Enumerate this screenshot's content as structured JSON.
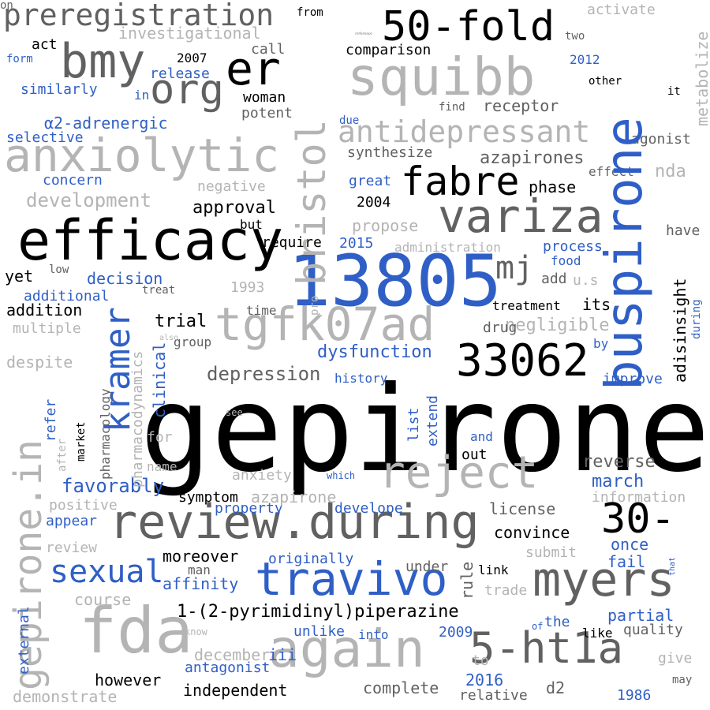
{
  "colors": {
    "background": "#ffffff",
    "black": "#000000",
    "dark_gray": "#616161",
    "light_gray": "#b4b4b4",
    "blue": "#2f5fc6"
  },
  "words": [
    {
      "text": "gepirone",
      "color": "#000000"
    },
    {
      "text": "13805",
      "color": "#2f5fc6"
    },
    {
      "text": "efficacy",
      "color": "#000000"
    },
    {
      "text": "fda",
      "color": "#b4b4b4"
    },
    {
      "text": "again",
      "color": "#b4b4b4"
    },
    {
      "text": "myers",
      "color": "#616161"
    },
    {
      "text": "review.during",
      "color": "#616161"
    },
    {
      "text": "travivo",
      "color": "#2f5fc6"
    },
    {
      "text": "anxiolytic",
      "color": "#b4b4b4"
    },
    {
      "text": "squibb",
      "color": "#b4b4b4"
    },
    {
      "text": "variza",
      "color": "#616161"
    },
    {
      "text": "tgfk07ad",
      "color": "#b4b4b4"
    },
    {
      "text": "reject",
      "color": "#b4b4b4"
    },
    {
      "text": "33062",
      "color": "#000000"
    },
    {
      "text": "5-ht1a",
      "color": "#616161"
    },
    {
      "text": "50-fold",
      "color": "#000000"
    },
    {
      "text": "fabre",
      "color": "#000000"
    },
    {
      "text": "bmy",
      "color": "#616161"
    },
    {
      "text": "er",
      "color": "#000000"
    },
    {
      "text": "org",
      "color": "#616161"
    },
    {
      "text": "30-",
      "color": "#000000"
    },
    {
      "text": "mj",
      "color": "#616161"
    },
    {
      "text": "preregistration",
      "color": "#616161"
    },
    {
      "text": "antidepressant",
      "color": "#b4b4b4"
    },
    {
      "text": "sexual",
      "color": "#2f5fc6"
    },
    {
      "text": "favorably",
      "color": "#2f5fc6"
    },
    {
      "text": "depression",
      "color": "#616161"
    },
    {
      "text": "1-(2-pyrimidinyl)piperazine",
      "color": "#000000"
    },
    {
      "text": "dysfunction",
      "color": "#2f5fc6"
    },
    {
      "text": "approval",
      "color": "#000000"
    },
    {
      "text": "development",
      "color": "#b4b4b4"
    },
    {
      "text": "investigational",
      "color": "#b4b4b4"
    },
    {
      "text": "comparison",
      "color": "#000000"
    },
    {
      "text": "receptor",
      "color": "#616161"
    },
    {
      "text": "synthesize",
      "color": "#616161"
    },
    {
      "text": "azapirones",
      "color": "#616161"
    },
    {
      "text": "phase",
      "color": "#000000"
    },
    {
      "text": "agonist",
      "color": "#616161"
    },
    {
      "text": "nda",
      "color": "#b4b4b4"
    },
    {
      "text": "effect",
      "color": "#616161"
    },
    {
      "text": "have",
      "color": "#616161"
    },
    {
      "text": "propose",
      "color": "#b4b4b4"
    },
    {
      "text": "process",
      "color": "#2f5fc6"
    },
    {
      "text": "food",
      "color": "#2f5fc6"
    },
    {
      "text": "administration",
      "color": "#b4b4b4"
    },
    {
      "text": "add",
      "color": "#616161"
    },
    {
      "text": "u.s",
      "color": "#b4b4b4"
    },
    {
      "text": "treatment",
      "color": "#000000"
    },
    {
      "text": "its",
      "color": "#000000"
    },
    {
      "text": "negligible",
      "color": "#b4b4b4"
    },
    {
      "text": "drug",
      "color": "#616161"
    },
    {
      "text": "history",
      "color": "#2f5fc6"
    },
    {
      "text": "improve",
      "color": "#2f5fc6"
    },
    {
      "text": "by",
      "color": "#2f5fc6"
    },
    {
      "text": "reverse",
      "color": "#616161"
    },
    {
      "text": "march",
      "color": "#2f5fc6"
    },
    {
      "text": "information",
      "color": "#b4b4b4"
    },
    {
      "text": "license",
      "color": "#616161"
    },
    {
      "text": "convince",
      "color": "#000000"
    },
    {
      "text": "once",
      "color": "#2f5fc6"
    },
    {
      "text": "fail",
      "color": "#2f5fc6"
    },
    {
      "text": "submit",
      "color": "#b4b4b4"
    },
    {
      "text": "rule",
      "color": "#616161"
    },
    {
      "text": "link",
      "color": "#000000"
    },
    {
      "text": "trade",
      "color": "#b4b4b4"
    },
    {
      "text": "partial",
      "color": "#2f5fc6"
    },
    {
      "text": "the",
      "color": "#2f5fc6"
    },
    {
      "text": "of",
      "color": "#2f5fc6"
    },
    {
      "text": "quality",
      "color": "#616161"
    },
    {
      "text": "like",
      "color": "#000000"
    },
    {
      "text": "give",
      "color": "#b4b4b4"
    },
    {
      "text": "may",
      "color": "#616161"
    },
    {
      "text": "1986",
      "color": "#2f5fc6"
    },
    {
      "text": "d2",
      "color": "#616161"
    },
    {
      "text": "relative",
      "color": "#616161"
    },
    {
      "text": "complete",
      "color": "#616161"
    },
    {
      "text": "2016",
      "color": "#2f5fc6"
    },
    {
      "text": "to",
      "color": "#b4b4b4"
    },
    {
      "text": "2009",
      "color": "#2f5fc6"
    },
    {
      "text": "into",
      "color": "#2f5fc6"
    },
    {
      "text": "unlike",
      "color": "#2f5fc6"
    },
    {
      "text": "iii",
      "color": "#2f5fc6"
    },
    {
      "text": "independent",
      "color": "#000000"
    },
    {
      "text": "antagonist",
      "color": "#2f5fc6"
    },
    {
      "text": "however",
      "color": "#000000"
    },
    {
      "text": "december",
      "color": "#b4b4b4"
    },
    {
      "text": "demonstrate",
      "color": "#b4b4b4"
    },
    {
      "text": "course",
      "color": "#b4b4b4"
    },
    {
      "text": "know",
      "color": "#b4b4b4"
    },
    {
      "text": "affinity",
      "color": "#2f5fc6"
    },
    {
      "text": "man",
      "color": "#616161"
    },
    {
      "text": "moreover",
      "color": "#000000"
    },
    {
      "text": "originally",
      "color": "#2f5fc6"
    },
    {
      "text": "under",
      "color": "#616161"
    },
    {
      "text": "appear",
      "color": "#2f5fc6"
    },
    {
      "text": "review",
      "color": "#b4b4b4"
    },
    {
      "text": "positive",
      "color": "#b4b4b4"
    },
    {
      "text": "property",
      "color": "#2f5fc6"
    },
    {
      "text": "develope",
      "color": "#2f5fc6"
    },
    {
      "text": "symptom",
      "color": "#000000"
    },
    {
      "text": "azapirone",
      "color": "#b4b4b4"
    },
    {
      "text": "anxiety",
      "color": "#b4b4b4"
    },
    {
      "text": "which",
      "color": "#2f5fc6"
    },
    {
      "text": "out",
      "color": "#000000"
    },
    {
      "text": "and",
      "color": "#2f5fc6"
    },
    {
      "text": "name",
      "color": "#b4b4b4"
    },
    {
      "text": "for",
      "color": "#b4b4b4"
    },
    {
      "text": "see",
      "color": "#b4b4b4"
    },
    {
      "text": "group",
      "color": "#616161"
    },
    {
      "text": "also",
      "color": "#b4b4b4"
    },
    {
      "text": "trial",
      "color": "#000000"
    },
    {
      "text": "time",
      "color": "#616161"
    },
    {
      "text": "on",
      "color": "#616161"
    },
    {
      "text": "pro",
      "color": "#b4b4b4"
    },
    {
      "text": "1993",
      "color": "#b4b4b4"
    },
    {
      "text": "treat",
      "color": "#616161"
    },
    {
      "text": "decision",
      "color": "#2f5fc6"
    },
    {
      "text": "additional",
      "color": "#2f5fc6"
    },
    {
      "text": "addition",
      "color": "#000000"
    },
    {
      "text": "multiple",
      "color": "#b4b4b4"
    },
    {
      "text": "despite",
      "color": "#b4b4b4"
    },
    {
      "text": "yet",
      "color": "#000000"
    },
    {
      "text": "low",
      "color": "#616161"
    },
    {
      "text": "require",
      "color": "#000000"
    },
    {
      "text": "2015",
      "color": "#2f5fc6"
    },
    {
      "text": "but",
      "color": "#000000"
    },
    {
      "text": "2004",
      "color": "#000000"
    },
    {
      "text": "great",
      "color": "#2f5fc6"
    },
    {
      "text": "negative",
      "color": "#b4b4b4"
    },
    {
      "text": "concern",
      "color": "#2f5fc6"
    },
    {
      "text": "selective",
      "color": "#2f5fc6"
    },
    {
      "text": "α2-adrenergic",
      "color": "#2f5fc6"
    },
    {
      "text": "due",
      "color": "#2f5fc6"
    },
    {
      "text": "potent",
      "color": "#616161"
    },
    {
      "text": "woman",
      "color": "#000000"
    },
    {
      "text": "release",
      "color": "#2f5fc6"
    },
    {
      "text": "in",
      "color": "#2f5fc6"
    },
    {
      "text": "similarly",
      "color": "#2f5fc6"
    },
    {
      "text": "form",
      "color": "#2f5fc6"
    },
    {
      "text": "act",
      "color": "#000000"
    },
    {
      "text": "2007",
      "color": "#000000"
    },
    {
      "text": "call",
      "color": "#616161"
    },
    {
      "text": "2012",
      "color": "#2f5fc6"
    },
    {
      "text": "other",
      "color": "#000000"
    },
    {
      "text": "find",
      "color": "#616161"
    },
    {
      "text": "it",
      "color": "#000000"
    },
    {
      "text": "two",
      "color": "#616161"
    },
    {
      "text": "from",
      "color": "#000000"
    },
    {
      "text": "activate",
      "color": "#b4b4b4"
    },
    {
      "text": "reference",
      "color": "#616161"
    },
    {
      "text": "buspirone",
      "color": "#2f5fc6"
    },
    {
      "text": "bristol",
      "color": "#b4b4b4"
    },
    {
      "text": "gepirone.in",
      "color": "#b4b4b4"
    },
    {
      "text": "kramer",
      "color": "#2f5fc6"
    },
    {
      "text": "metabolize",
      "color": "#b4b4b4"
    },
    {
      "text": "adisinsight",
      "color": "#000000"
    },
    {
      "text": "during",
      "color": "#2f5fc6"
    },
    {
      "text": "clinical",
      "color": "#2f5fc6"
    },
    {
      "text": "pharmacodynamics",
      "color": "#b4b4b4"
    },
    {
      "text": "pharmacology",
      "color": "#616161"
    },
    {
      "text": "market",
      "color": "#000000"
    },
    {
      "text": "refer",
      "color": "#2f5fc6"
    },
    {
      "text": "after",
      "color": "#b4b4b4"
    },
    {
      "text": "list",
      "color": "#2f5fc6"
    },
    {
      "text": "extend",
      "color": "#2f5fc6"
    },
    {
      "text": "external",
      "color": "#2f5fc6"
    },
    {
      "text": "that",
      "color": "#2f5fc6"
    }
  ]
}
